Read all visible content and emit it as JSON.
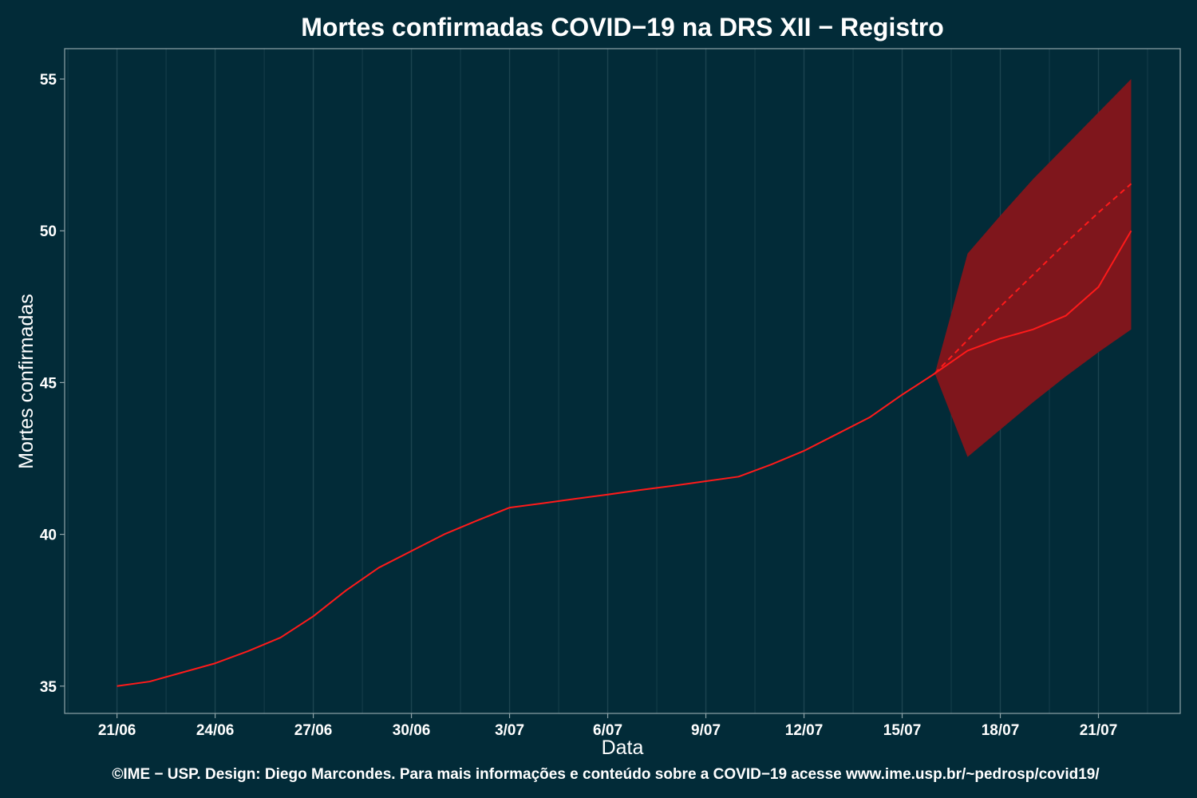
{
  "chart_data": {
    "type": "line",
    "title": "Mortes confirmadas COVID−19 na DRS XII − Registro",
    "xlabel": "Data",
    "ylabel": "Mortes confirmadas",
    "caption": "©IME − USP. Design: Diego Marcondes. Para mais informações e conteúdo sobre a COVID−19 acesse www.ime.usp.br/~pedrosp/covid19/",
    "x_tick_labels": [
      "21/06",
      "24/06",
      "27/06",
      "30/06",
      "3/07",
      "6/07",
      "9/07",
      "12/07",
      "15/07",
      "18/07",
      "21/07"
    ],
    "x_tick_days": [
      0,
      3,
      6,
      9,
      12,
      15,
      18,
      21,
      24,
      27,
      30
    ],
    "x_start_date": "2020-06-21",
    "xlim_days": [
      -1.6,
      32.5
    ],
    "y_ticks": [
      35,
      40,
      45,
      50,
      55
    ],
    "ylim": [
      34.1,
      56.0
    ],
    "grid": "vertical",
    "colors": {
      "background": "#022b38",
      "line": "#ff1a1a",
      "band": "#7f161c",
      "grid": "#1c4450",
      "frame": "#8fa3a8",
      "text": "#ffffff"
    },
    "series": [
      {
        "style": "solid",
        "x_days": [
          0,
          1,
          2,
          3,
          4,
          5,
          6,
          7,
          8,
          9,
          10,
          11,
          12,
          13,
          14,
          15,
          16,
          17,
          18,
          19,
          20,
          21,
          22,
          23,
          24,
          25,
          26,
          27,
          28,
          29,
          30,
          31
        ],
        "values": [
          35.0,
          35.15,
          35.45,
          35.75,
          36.15,
          36.6,
          37.3,
          38.15,
          38.9,
          39.45,
          40.0,
          40.45,
          40.88,
          41.02,
          41.17,
          41.31,
          41.46,
          41.6,
          41.75,
          41.9,
          42.3,
          42.75,
          43.3,
          43.85,
          44.6,
          45.3,
          46.05,
          46.45,
          46.75,
          47.2,
          48.15,
          50.0
        ]
      },
      {
        "style": "dashed",
        "x_days": [
          25,
          26,
          27,
          28,
          29,
          30,
          31
        ],
        "values": [
          45.3,
          46.4,
          47.5,
          48.55,
          49.6,
          50.6,
          51.55
        ]
      }
    ],
    "band": {
      "x_days": [
        25,
        26,
        27,
        28,
        29,
        30,
        31
      ],
      "lower": [
        45.3,
        42.55,
        43.45,
        44.35,
        45.2,
        46.0,
        46.75
      ],
      "upper": [
        45.3,
        49.25,
        50.5,
        51.7,
        52.8,
        53.9,
        55.0
      ]
    }
  }
}
